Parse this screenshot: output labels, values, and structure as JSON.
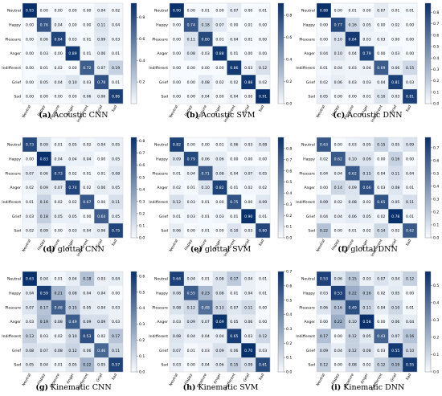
{
  "labels": [
    "Neutral",
    "Happy",
    "Pleasure",
    "Anger",
    "Indifferent",
    "Grief",
    "Sad"
  ],
  "chart_data": [
    {
      "type": "heatmap",
      "letter": "(a)",
      "title": "Acoustic CNN",
      "vmax": 0.93,
      "ticks": [
        "0.2",
        "0.4",
        "0.6",
        "0.8"
      ],
      "values": [
        [
          0.93,
          0.0,
          0.0,
          0.0,
          0.0,
          0.04,
          0.02
        ],
        [
          0.0,
          0.76,
          0.04,
          0.0,
          0.0,
          0.11,
          0.04
        ],
        [
          0.0,
          0.06,
          0.84,
          0.03,
          0.01,
          0.09,
          0.03
        ],
        [
          0.0,
          0.03,
          0.0,
          0.89,
          0.01,
          0.06,
          0.01
        ],
        [
          0.0,
          0.01,
          0.02,
          0.0,
          0.72,
          0.07,
          0.19
        ],
        [
          0.0,
          0.05,
          0.04,
          0.1,
          0.03,
          0.78,
          0.01
        ],
        [
          0.0,
          0.0,
          0.0,
          0.0,
          0.06,
          0.06,
          0.86
        ]
      ]
    },
    {
      "type": "heatmap",
      "letter": "(b)",
      "title": "Acoustic SVM",
      "vmax": 0.91,
      "ticks": [
        "0.0",
        "0.2",
        "0.4",
        "0.6",
        "0.8"
      ],
      "values": [
        [
          0.9,
          0.0,
          0.01,
          0.0,
          0.07,
          0.0,
          0.01
        ],
        [
          0.0,
          0.74,
          0.18,
          0.07,
          0.0,
          0.01,
          0.0
        ],
        [
          0.0,
          0.11,
          0.8,
          0.01,
          0.04,
          0.01,
          0.0
        ],
        [
          0.0,
          0.08,
          0.03,
          0.88,
          0.01,
          0.0,
          0.0
        ],
        [
          0.0,
          0.0,
          0.0,
          0.0,
          0.86,
          0.03,
          0.12
        ],
        [
          0.0,
          0.0,
          0.08,
          0.02,
          0.02,
          0.88,
          0.02
        ],
        [
          0.0,
          0.0,
          0.04,
          0.0,
          0.04,
          0.0,
          0.91
        ]
      ]
    },
    {
      "type": "heatmap",
      "letter": "(c)",
      "title": "Acoustic DNN",
      "vmax": 0.88,
      "ticks": [
        "0.0",
        "0.1",
        "0.2",
        "0.3",
        "0.4",
        "0.5",
        "0.6",
        "0.7",
        "0.8"
      ],
      "values": [
        [
          0.88,
          0.0,
          0.01,
          0.0,
          0.07,
          0.01,
          0.01
        ],
        [
          0.0,
          0.77,
          0.16,
          0.05,
          0.0,
          0.02,
          0.0
        ],
        [
          0.0,
          0.1,
          0.84,
          0.03,
          0.03,
          0.0,
          0.0
        ],
        [
          0.04,
          0.1,
          0.04,
          0.79,
          0.0,
          0.03,
          0.0
        ],
        [
          0.01,
          0.04,
          0.03,
          0.04,
          0.69,
          0.06,
          0.15
        ],
        [
          0.02,
          0.06,
          0.03,
          0.03,
          0.04,
          0.81,
          0.03
        ],
        [
          0.05,
          0.0,
          0.0,
          0.01,
          0.1,
          0.03,
          0.81
        ]
      ]
    },
    {
      "type": "heatmap",
      "letter": "(d)",
      "title": "glottal CNN",
      "vmax": 0.83,
      "ticks": [
        "0.0",
        "0.1",
        "0.2",
        "0.3",
        "0.4",
        "0.5",
        "0.6",
        "0.7",
        "0.8"
      ],
      "values": [
        [
          0.73,
          0.09,
          0.01,
          0.05,
          0.02,
          0.04,
          0.05
        ],
        [
          0.0,
          0.83,
          0.04,
          0.04,
          0.04,
          0.0,
          0.05
        ],
        [
          0.07,
          0.06,
          0.73,
          0.02,
          0.01,
          0.01,
          0.08
        ],
        [
          0.02,
          0.09,
          0.07,
          0.74,
          0.02,
          0.06,
          0.05
        ],
        [
          0.01,
          0.16,
          0.02,
          0.02,
          0.67,
          0.0,
          0.11
        ],
        [
          0.03,
          0.18,
          0.05,
          0.05,
          0.0,
          0.64,
          0.05
        ],
        [
          0.02,
          0.09,
          0.0,
          0.03,
          0.04,
          0.06,
          0.75
        ]
      ]
    },
    {
      "type": "heatmap",
      "letter": "(e)",
      "title": "glottal SVM",
      "vmax": 0.9,
      "ticks": [
        "0.0",
        "0.1",
        "0.2",
        "0.3",
        "0.4",
        "0.5",
        "0.6",
        "0.7",
        "0.8"
      ],
      "values": [
        [
          0.82,
          0.0,
          0.0,
          0.01,
          0.06,
          0.03,
          0.08
        ],
        [
          0.09,
          0.79,
          0.06,
          0.06,
          0.0,
          0.0,
          0.0
        ],
        [
          0.01,
          0.04,
          0.71,
          0.08,
          0.04,
          0.07,
          0.05
        ],
        [
          0.02,
          0.01,
          0.1,
          0.82,
          0.01,
          0.02,
          0.02
        ],
        [
          0.12,
          0.03,
          0.01,
          0.0,
          0.75,
          0.0,
          0.09
        ],
        [
          0.01,
          0.03,
          0.01,
          0.03,
          0.01,
          0.9,
          0.01
        ],
        [
          0.06,
          0.0,
          0.01,
          0.0,
          0.1,
          0.03,
          0.8
        ]
      ]
    },
    {
      "type": "heatmap",
      "letter": "(f)",
      "title": "glottal DNN",
      "vmax": 0.78,
      "ticks": [
        "0.0",
        "0.1",
        "0.2",
        "0.3",
        "0.4",
        "0.5",
        "0.6",
        "0.7"
      ],
      "values": [
        [
          0.63,
          0.0,
          0.03,
          0.05,
          0.15,
          0.05,
          0.09
        ],
        [
          0.02,
          0.62,
          0.1,
          0.09,
          0.0,
          0.16,
          0.0
        ],
        [
          0.04,
          0.04,
          0.62,
          0.15,
          0.04,
          0.11,
          0.04
        ],
        [
          0.0,
          0.14,
          0.09,
          0.66,
          0.03,
          0.08,
          0.01
        ],
        [
          0.09,
          0.02,
          0.08,
          0.02,
          0.65,
          0.05,
          0.11
        ],
        [
          0.04,
          0.04,
          0.06,
          0.05,
          0.02,
          0.78,
          0.01
        ],
        [
          0.22,
          0.0,
          0.01,
          0.02,
          0.14,
          0.02,
          0.62
        ]
      ]
    },
    {
      "type": "heatmap",
      "letter": "(g)",
      "title": "Kinematic CNN",
      "vmax": 0.63,
      "ticks": [
        "0.0",
        "0.1",
        "0.2",
        "0.3",
        "0.4",
        "0.5",
        "0.6"
      ],
      "values": [
        [
          0.63,
          0.04,
          0.01,
          0.04,
          0.18,
          0.03,
          0.04
        ],
        [
          0.04,
          0.59,
          0.21,
          0.08,
          0.04,
          0.04,
          0.0
        ],
        [
          0.07,
          0.17,
          0.48,
          0.15,
          0.05,
          0.04,
          0.03
        ],
        [
          0.03,
          0.19,
          0.08,
          0.49,
          0.09,
          0.09,
          0.03
        ],
        [
          0.13,
          0.03,
          0.02,
          0.1,
          0.53,
          0.02,
          0.17
        ],
        [
          0.08,
          0.07,
          0.08,
          0.12,
          0.06,
          0.46,
          0.11
        ],
        [
          0.05,
          0.04,
          0.01,
          0.05,
          0.22,
          0.05,
          0.57
        ]
      ]
    },
    {
      "type": "heatmap",
      "letter": "(h)",
      "title": "Kinematic SVM",
      "vmax": 0.7,
      "ticks": [
        "0.0",
        "0.1",
        "0.2",
        "0.3",
        "0.4",
        "0.5",
        "0.6",
        "0.7"
      ],
      "values": [
        [
          0.64,
          0.04,
          0.01,
          0.08,
          0.17,
          0.04,
          0.01
        ],
        [
          0.08,
          0.55,
          0.23,
          0.08,
          0.01,
          0.04,
          0.01
        ],
        [
          0.08,
          0.12,
          0.48,
          0.13,
          0.07,
          0.11,
          0.0
        ],
        [
          0.03,
          0.09,
          0.07,
          0.69,
          0.05,
          0.06,
          0.0
        ],
        [
          0.08,
          0.04,
          0.04,
          0.04,
          0.65,
          0.03,
          0.12
        ],
        [
          0.07,
          0.01,
          0.03,
          0.09,
          0.06,
          0.7,
          0.03
        ],
        [
          0.03,
          0.0,
          0.04,
          0.06,
          0.15,
          0.09,
          0.61
        ]
      ]
    },
    {
      "type": "heatmap",
      "letter": "(i)",
      "title": "Kinematic DNN",
      "vmax": 0.58,
      "ticks": [
        "0.0",
        "0.1",
        "0.2",
        "0.3",
        "0.4",
        "0.5"
      ],
      "values": [
        [
          0.53,
          0.06,
          0.15,
          0.03,
          0.07,
          0.04,
          0.12
        ],
        [
          0.03,
          0.53,
          0.22,
          0.16,
          0.02,
          0.05,
          0.0
        ],
        [
          0.06,
          0.16,
          0.49,
          0.11,
          0.04,
          0.1,
          0.01
        ],
        [
          0.0,
          0.22,
          0.1,
          0.58,
          0.0,
          0.06,
          0.04
        ],
        [
          0.17,
          0.0,
          0.12,
          0.05,
          0.43,
          0.07,
          0.16
        ],
        [
          0.09,
          0.04,
          0.12,
          0.08,
          0.03,
          0.55,
          0.1
        ],
        [
          0.12,
          0.0,
          0.08,
          0.02,
          0.12,
          0.19,
          0.55
        ]
      ]
    }
  ]
}
